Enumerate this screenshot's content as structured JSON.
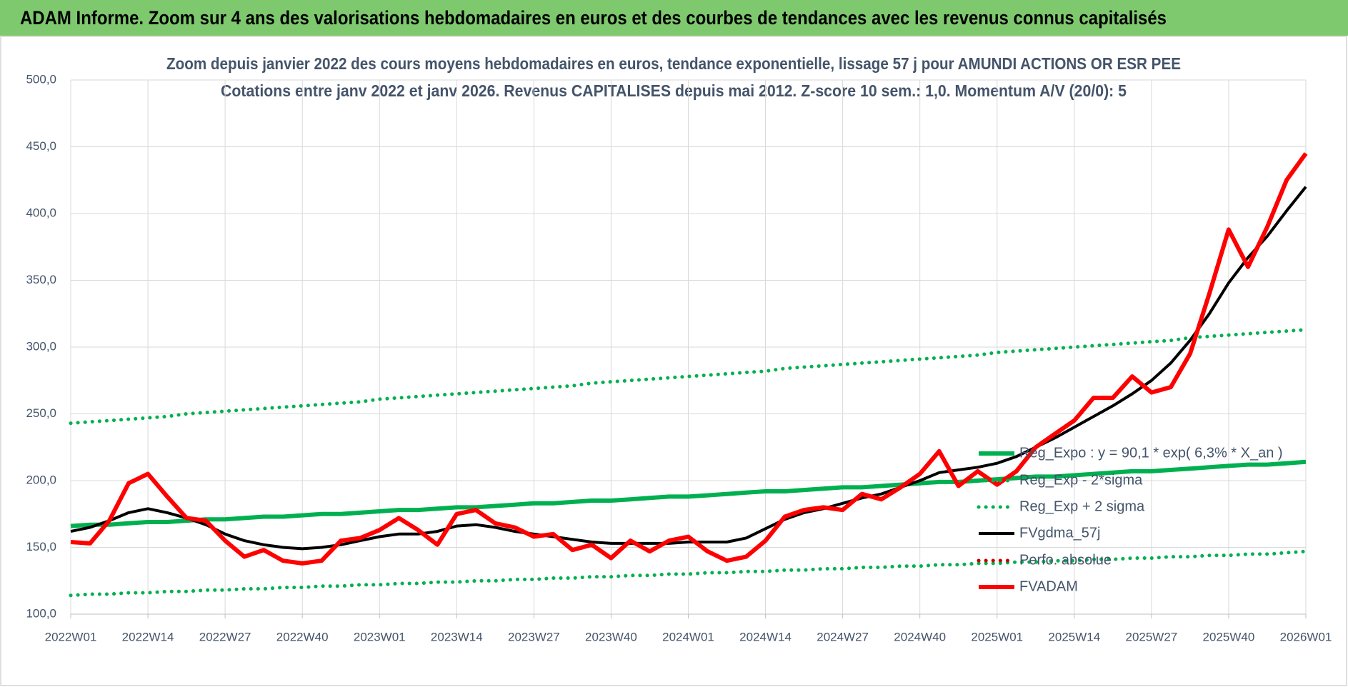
{
  "header": {
    "title": "ADAM Informe. Zoom sur 4 ans des valorisations hebdomadaires en euros et des courbes de tendances avec les revenus connus capitalisés"
  },
  "chart_data": {
    "type": "line",
    "title": "Zoom depuis janvier 2022 des cours moyens hebdomadaires en euros, tendance exponentielle, lissage 57 j pour AMUNDI ACTIONS OR ESR PEE",
    "subtitle": "Cotations entre janv 2022 et janv 2026. Revenus CAPITALISES depuis mai 2012. Z-score 10 sem.: 1,0. Momentum A/V (20/0): 5",
    "categories": [
      "2022W01",
      null,
      null,
      null,
      "2022W14",
      null,
      null,
      null,
      "2022W27",
      null,
      null,
      null,
      "2022W40",
      null,
      null,
      null,
      "2023W01",
      null,
      null,
      null,
      "2023W14",
      null,
      null,
      null,
      "2023W27",
      null,
      null,
      null,
      "2023W40",
      null,
      null,
      null,
      "2024W01",
      null,
      null,
      null,
      "2024W14",
      null,
      null,
      null,
      "2024W27",
      null,
      null,
      null,
      "2024W40",
      null,
      null,
      null,
      "2025W01",
      null,
      null,
      null,
      "2025W14",
      null,
      null,
      null,
      "2025W27",
      null,
      null,
      null,
      "2025W40",
      null,
      null,
      null,
      "2026W01"
    ],
    "ylim": [
      100,
      500
    ],
    "yticks": [
      {
        "value": 100,
        "label": "100,0"
      },
      {
        "value": 150,
        "label": "150,0"
      },
      {
        "value": 200,
        "label": "200,0"
      },
      {
        "value": 250,
        "label": "250,0"
      },
      {
        "value": 300,
        "label": "300,0"
      },
      {
        "value": 350,
        "label": "350,0"
      },
      {
        "value": 400,
        "label": "400,0"
      },
      {
        "value": 450,
        "label": "450,0"
      },
      {
        "value": 500,
        "label": "500,0"
      }
    ],
    "grid": true,
    "series": [
      {
        "name": "Reg_Expo : y = 90,1 * exp( 6,3% * X_an )",
        "color": "#00b050",
        "style": "solid",
        "values": [
          166,
          167,
          167,
          168,
          169,
          169,
          170,
          171,
          171,
          172,
          173,
          173,
          174,
          175,
          175,
          176,
          177,
          178,
          178,
          179,
          180,
          180,
          181,
          182,
          183,
          183,
          184,
          185,
          185,
          186,
          187,
          188,
          188,
          189,
          190,
          191,
          192,
          192,
          193,
          194,
          195,
          195,
          196,
          197,
          198,
          199,
          199,
          200,
          201,
          202,
          203,
          203,
          204,
          205,
          206,
          207,
          207,
          208,
          209,
          210,
          211,
          212,
          212,
          213,
          214
        ]
      },
      {
        "name": "Reg_Exp - 2*sigma",
        "color": "#00b050",
        "style": "dotted",
        "values": [
          114,
          115,
          115,
          116,
          116,
          117,
          117,
          118,
          118,
          119,
          119,
          120,
          120,
          121,
          121,
          122,
          122,
          123,
          123,
          124,
          124,
          125,
          125,
          126,
          126,
          127,
          127,
          128,
          128,
          129,
          129,
          130,
          130,
          131,
          131,
          132,
          132,
          133,
          133,
          134,
          134,
          135,
          135,
          136,
          136,
          137,
          137,
          138,
          138,
          139,
          139,
          140,
          140,
          141,
          141,
          142,
          142,
          143,
          143,
          144,
          144,
          145,
          145,
          146,
          147
        ]
      },
      {
        "name": "Reg_Exp + 2 sigma",
        "color": "#00b050",
        "style": "dotted",
        "values": [
          243,
          244,
          245,
          246,
          247,
          248,
          250,
          251,
          252,
          253,
          254,
          255,
          256,
          257,
          258,
          259,
          261,
          262,
          263,
          264,
          265,
          266,
          267,
          268,
          269,
          270,
          271,
          273,
          274,
          275,
          276,
          277,
          278,
          279,
          280,
          281,
          282,
          284,
          285,
          286,
          287,
          288,
          289,
          290,
          291,
          292,
          293,
          294,
          296,
          297,
          298,
          299,
          300,
          301,
          302,
          303,
          304,
          305,
          307,
          308,
          309,
          310,
          311,
          312,
          313
        ]
      },
      {
        "name": "FVgdma_57j",
        "color": "#000000",
        "style": "solid",
        "values": [
          162,
          165,
          170,
          176,
          179,
          176,
          172,
          167,
          160,
          155,
          152,
          150,
          149,
          150,
          152,
          155,
          158,
          160,
          160,
          162,
          166,
          167,
          165,
          162,
          160,
          158,
          156,
          154,
          153,
          153,
          153,
          153,
          154,
          154,
          154,
          157,
          164,
          171,
          176,
          179,
          183,
          187,
          190,
          195,
          200,
          206,
          208,
          210,
          213,
          218,
          225,
          232,
          240,
          248,
          256,
          265,
          275,
          288,
          305,
          325,
          348,
          367,
          383,
          402,
          420
        ]
      },
      {
        "name": "Perfo. absolue",
        "color": "#c00000",
        "style": "dotted",
        "values": [
          null,
          null,
          null,
          null,
          null,
          null,
          null,
          null,
          null,
          null,
          null,
          null,
          null,
          null,
          null,
          null,
          null,
          null,
          null,
          null,
          null,
          null,
          null,
          null,
          null,
          null,
          null,
          null,
          null,
          null,
          null,
          null,
          null,
          null,
          null,
          null,
          null,
          null,
          null,
          null,
          null,
          null,
          null,
          null,
          null,
          null,
          null,
          null,
          null,
          null,
          null,
          null,
          null,
          null,
          null,
          null,
          null,
          null,
          null,
          null,
          null,
          null,
          null,
          null,
          null
        ]
      },
      {
        "name": "FVADAM",
        "color": "#ff0000",
        "style": "solid",
        "values": [
          154,
          153,
          170,
          198,
          205,
          188,
          172,
          170,
          155,
          143,
          148,
          140,
          138,
          140,
          155,
          157,
          163,
          172,
          163,
          152,
          175,
          178,
          168,
          165,
          158,
          160,
          148,
          152,
          142,
          155,
          147,
          155,
          158,
          147,
          140,
          143,
          155,
          173,
          178,
          180,
          178,
          190,
          186,
          195,
          205,
          222,
          196,
          207,
          197,
          207,
          225,
          235,
          245,
          262,
          262,
          278,
          266,
          270,
          295,
          340,
          388,
          360,
          390,
          425,
          445
        ]
      }
    ]
  }
}
